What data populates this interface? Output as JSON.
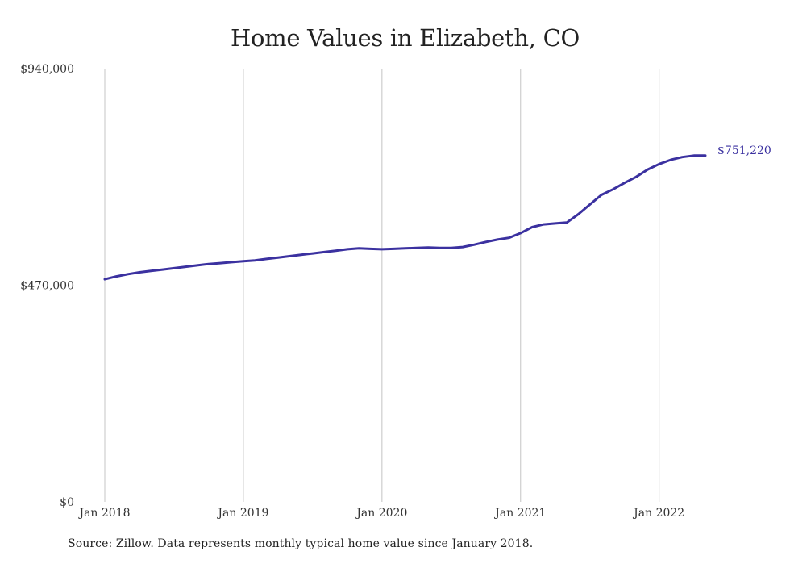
{
  "chart_data": {
    "type": "line",
    "title": "Home Values in Elizabeth, CO",
    "xlabel": "",
    "ylabel": "",
    "x_ticks": [
      {
        "date": "2018-01",
        "label": "Jan 2018"
      },
      {
        "date": "2019-01",
        "label": "Jan 2019"
      },
      {
        "date": "2020-01",
        "label": "Jan 2020"
      },
      {
        "date": "2021-01",
        "label": "Jan 2021"
      },
      {
        "date": "2022-01",
        "label": "Jan 2022"
      }
    ],
    "y_ticks": [
      {
        "value": 0,
        "label": "$0"
      },
      {
        "value": 470000,
        "label": "$470,000"
      },
      {
        "value": 940000,
        "label": "$940,000"
      }
    ],
    "xlim": [
      "2018-01",
      "2022-05"
    ],
    "ylim": [
      0,
      940000
    ],
    "grid": "vertical",
    "series": [
      {
        "color": "#3b31a0",
        "x": [
          "2018-01",
          "2018-02",
          "2018-03",
          "2018-04",
          "2018-05",
          "2018-06",
          "2018-07",
          "2018-08",
          "2018-09",
          "2018-10",
          "2018-11",
          "2018-12",
          "2019-01",
          "2019-02",
          "2019-03",
          "2019-04",
          "2019-05",
          "2019-06",
          "2019-07",
          "2019-08",
          "2019-09",
          "2019-10",
          "2019-11",
          "2019-12",
          "2020-01",
          "2020-02",
          "2020-03",
          "2020-04",
          "2020-05",
          "2020-06",
          "2020-07",
          "2020-08",
          "2020-09",
          "2020-10",
          "2020-11",
          "2020-12",
          "2021-01",
          "2021-02",
          "2021-03",
          "2021-04",
          "2021-05",
          "2021-06",
          "2021-07",
          "2021-08",
          "2021-09",
          "2021-10",
          "2021-11",
          "2021-12",
          "2022-01",
          "2022-02",
          "2022-03",
          "2022-04",
          "2022-05"
        ],
        "values": [
          483000,
          489000,
          494000,
          498000,
          501000,
          504000,
          507000,
          510000,
          513000,
          516000,
          518000,
          520000,
          522000,
          524000,
          527000,
          530000,
          533000,
          536000,
          539000,
          542000,
          545000,
          548000,
          550000,
          549000,
          548000,
          549000,
          550000,
          551000,
          552000,
          551000,
          551000,
          553000,
          558000,
          564000,
          569000,
          573000,
          583000,
          596000,
          602000,
          604000,
          606000,
          624000,
          645000,
          666000,
          678000,
          692000,
          705000,
          721000,
          733000,
          742000,
          748000,
          751220,
          751220
        ]
      }
    ],
    "end_label": "$751,220"
  },
  "source_note": "Source: Zillow. Data represents monthly typical home value since January 2018."
}
